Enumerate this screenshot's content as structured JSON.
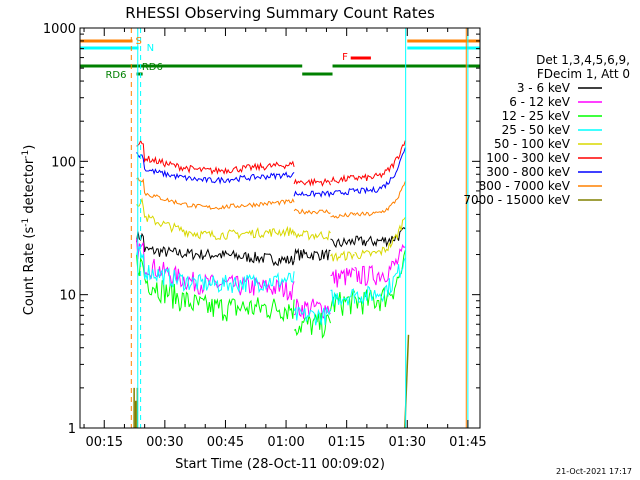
{
  "chart_data": {
    "type": "line",
    "title": "RHESSI Observing Summary Count Rates",
    "xlabel": "Start Time (28-Oct-11 00:09:02)",
    "ylabel_main": "Count Rate (s",
    "ylabel_sup1": "-1",
    "ylabel_mid": " detector",
    "ylabel_sup2": "-1",
    "ylabel_end": ")",
    "y_scale": "log",
    "ylim": [
      1,
      1000
    ],
    "xlim_minutes": [
      9,
      108
    ],
    "x_ticks": [
      {
        "label": "00:15",
        "min": 15
      },
      {
        "label": "00:30",
        "min": 30
      },
      {
        "label": "00:45",
        "min": 45
      },
      {
        "label": "01:00",
        "min": 60
      },
      {
        "label": "01:15",
        "min": 75
      },
      {
        "label": "01:30",
        "min": 90
      },
      {
        "label": "01:45",
        "min": 105
      }
    ],
    "y_ticks": [
      {
        "label": "1",
        "value": 1
      },
      {
        "label": "10",
        "value": 10
      },
      {
        "label": "100",
        "value": 100
      },
      {
        "label": "1000",
        "value": 1000
      }
    ],
    "legend_header": [
      "Det 1,3,4,5,6,9,",
      "FDecim 1, Att 0"
    ],
    "legend_placement": "right",
    "series": [
      {
        "name": "3 - 6 keV",
        "color": "#000000",
        "values": [
          22,
          20,
          18,
          20,
          25,
          30
        ]
      },
      {
        "name": "6 - 12 keV",
        "color": "#ff00ff",
        "values": [
          18,
          12,
          11,
          8,
          14,
          22
        ]
      },
      {
        "name": "12 - 25 keV",
        "color": "#00ff00",
        "values": [
          14,
          8,
          8,
          6,
          9,
          18
        ]
      },
      {
        "name": "25 - 50 keV",
        "color": "#00ffff",
        "values": [
          16,
          12,
          13,
          7,
          10,
          20
        ]
      },
      {
        "name": "50 - 100 keV",
        "color": "#d8d800",
        "values": [
          40,
          28,
          30,
          28,
          20,
          40
        ]
      },
      {
        "name": "100 - 300 keV",
        "color": "#ff0000",
        "values": [
          110,
          85,
          95,
          70,
          75,
          150
        ]
      },
      {
        "name": "300 - 800 keV",
        "color": "#0000ff",
        "values": [
          90,
          72,
          80,
          57,
          60,
          130
        ]
      },
      {
        "name": "800 - 7000 keV",
        "color": "#ff8000",
        "values": [
          60,
          45,
          50,
          42,
          40,
          70
        ]
      },
      {
        "name": "7000 - 15000 keV",
        "color": "#808000",
        "values": [
          2,
          null,
          null,
          null,
          null,
          5
        ]
      }
    ],
    "annotations": [
      {
        "text": "S",
        "color": "#ff8000"
      },
      {
        "text": "N",
        "color": "#00ffff"
      },
      {
        "text": "RD6",
        "color": "#008000"
      },
      {
        "text": "RD6",
        "color": "#008000"
      },
      {
        "text": "F",
        "color": "#ff0000"
      }
    ],
    "timestamp": "21-Oct-2021 17:17"
  }
}
